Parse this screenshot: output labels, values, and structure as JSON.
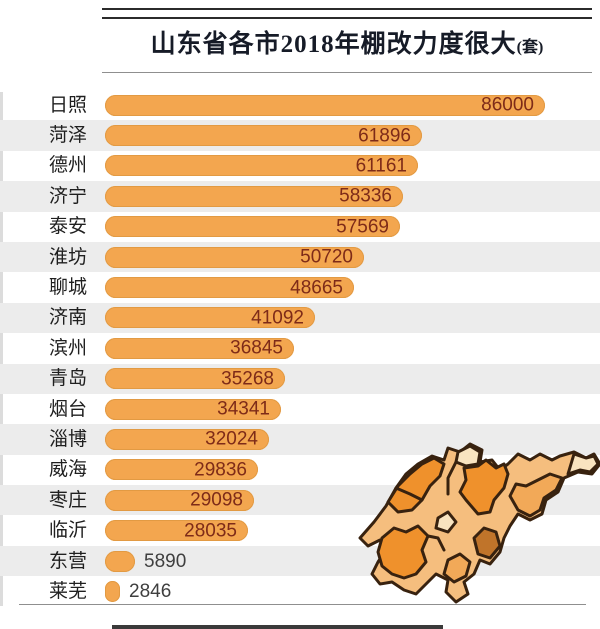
{
  "header": {
    "title": "山东省各市2018年棚改力度很大",
    "unit_suffix": "(套)"
  },
  "chart_data": {
    "type": "bar",
    "orientation": "horizontal",
    "title": "山东省各市2018年棚改力度很大(套)",
    "unit": "套",
    "categories": [
      "日照",
      "菏泽",
      "德州",
      "济宁",
      "泰安",
      "淮坊",
      "聊城",
      "济南",
      "滨州",
      "青岛",
      "烟台",
      "淄博",
      "威海",
      "枣庄",
      "临沂",
      "东营",
      "莱芜"
    ],
    "values": [
      86000,
      61896,
      61161,
      58336,
      57569,
      50720,
      48665,
      41092,
      36845,
      35268,
      34341,
      32024,
      29836,
      29098,
      28035,
      5890,
      2846
    ],
    "xlim": [
      0,
      86000
    ],
    "grid": false,
    "legend": false,
    "zebra_striping": true,
    "value_label_position": "inside right end of bar; outside for the two smallest bars",
    "inset": "shandong-province-choropleth-map (bottom right, orange shades)"
  },
  "colors": {
    "bar": "#f3a64f",
    "bar_edge": "#e29a43",
    "stripe": "#ececec",
    "value_inside": "#7e2b18",
    "value_outside": "#3f3f3f",
    "label": "#1f1f1f",
    "title": "#161b27",
    "rule_dark": "#2b2b2b",
    "rule_light": "#8f8f8f"
  },
  "map": {
    "name": "shandong-province-choropleth-inset",
    "palette": {
      "light": "#f5be7e",
      "bright": "#ef912c",
      "medium": "#f2a958",
      "cream": "#f9e4c0",
      "dark": "#c0742a",
      "border": "#38220f"
    }
  }
}
